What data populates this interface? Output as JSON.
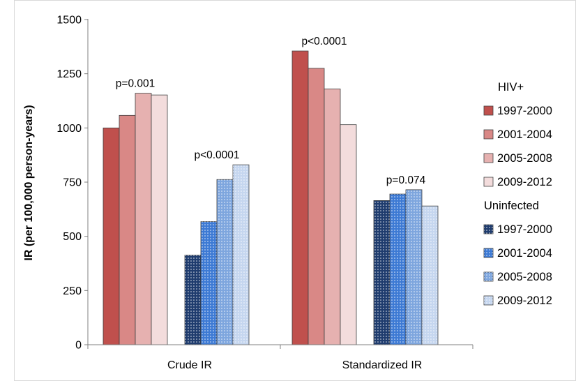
{
  "chart_data": {
    "type": "bar",
    "title": "",
    "xlabel": "",
    "ylabel": "IR (per 100,000 person-years)",
    "ylim": [
      0,
      1500
    ],
    "yticks": [
      "0",
      "250",
      "500",
      "750",
      "1000",
      "1250",
      "1500"
    ],
    "grid": false,
    "legend_position": "right",
    "categories": [
      "Crude IR",
      "Standardized IR"
    ],
    "groups": [
      {
        "name": "HIV+",
        "series": [
          {
            "name": "1997-2000",
            "values": [
              1000,
              1355
            ],
            "color": "#c0504d",
            "pattern": "solid"
          },
          {
            "name": "2001-2004",
            "values": [
              1058,
              1275
            ],
            "color": "#d98886",
            "pattern": "solid"
          },
          {
            "name": "2005-2008",
            "values": [
              1160,
              1180
            ],
            "color": "#e6b1b0",
            "pattern": "solid"
          },
          {
            "name": "2009-2012",
            "values": [
              1152,
              1015
            ],
            "color": "#f3dcdc",
            "pattern": "solid"
          }
        ]
      },
      {
        "name": "Uninfected",
        "series": [
          {
            "name": "1997-2000",
            "values": [
              413,
              665
            ],
            "color": "#1f3c6e",
            "pattern": "dots"
          },
          {
            "name": "2001-2004",
            "values": [
              568,
              695
            ],
            "color": "#3d7ad4",
            "pattern": "dots"
          },
          {
            "name": "2005-2008",
            "values": [
              762,
              715
            ],
            "color": "#7ea6de",
            "pattern": "dots"
          },
          {
            "name": "2009-2012",
            "values": [
              830,
              640
            ],
            "color": "#c5d6ef",
            "pattern": "dots"
          }
        ]
      }
    ],
    "annotations": [
      {
        "text": "p=0.001",
        "category": "Crude IR",
        "group": "HIV+"
      },
      {
        "text": "p<0.0001",
        "category": "Crude IR",
        "group": "Uninfected"
      },
      {
        "text": "p<0.0001",
        "category": "Standardized IR",
        "group": "HIV+"
      },
      {
        "text": "p=0.074",
        "category": "Standardized IR",
        "group": "Uninfected"
      }
    ]
  }
}
